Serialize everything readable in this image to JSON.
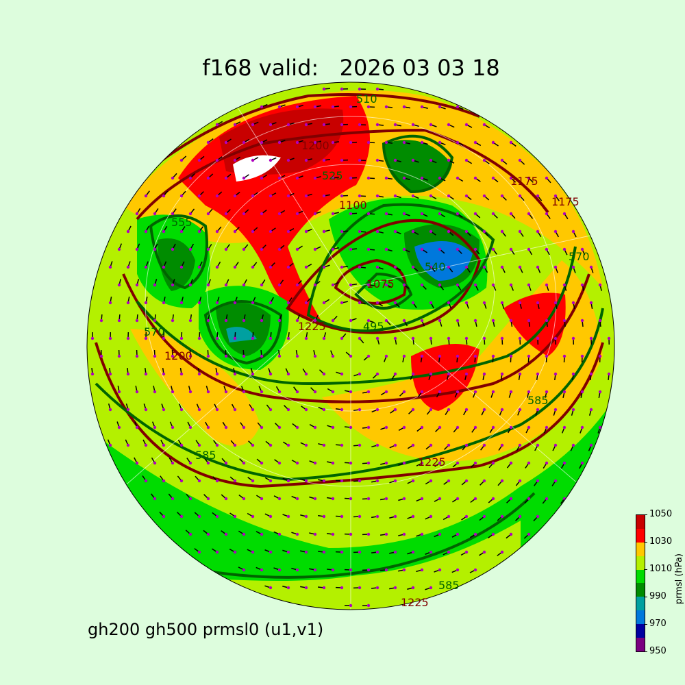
{
  "title": "f168 valid:   2026 03 03 18",
  "subtitle": "gh200 gh500 prmsl0 (u1,v1)",
  "colorbar": {
    "label": "prmsl (hPa)",
    "ticks": [
      "1050",
      "1030",
      "1010",
      "990",
      "970",
      "950"
    ],
    "levels": [
      950,
      960,
      970,
      980,
      990,
      1000,
      1010,
      1020,
      1030,
      1040,
      1050
    ],
    "colors": [
      "#7a0080",
      "#0000a0",
      "#0078dc",
      "#00a0a0",
      "#008c00",
      "#00dc00",
      "#b4f000",
      "#ffc800",
      "#ff0000",
      "#c80000"
    ]
  },
  "contour_labels": {
    "gh500": [
      "570",
      "585",
      "585",
      "585",
      "555",
      "540",
      "525",
      "495",
      "510",
      "570"
    ],
    "gh200": [
      "1200",
      "1225",
      "1175",
      "1100",
      "1075",
      "1225",
      "1200",
      "1175",
      "1225"
    ]
  },
  "colors": {
    "background": "#ddfddd",
    "gh500": "#006400",
    "gh200": "#800000",
    "wind_barbs": "#000000",
    "wind_dots": "#b000c0"
  }
}
